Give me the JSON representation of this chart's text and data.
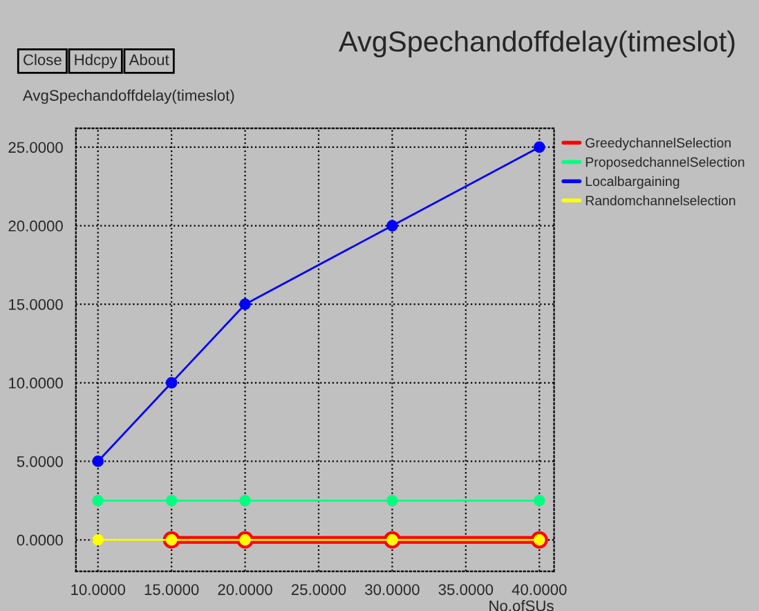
{
  "chart_data": {
    "type": "line",
    "title": "AvgSpechandoffdelay(timeslot)",
    "ylabel": "AvgSpechandoffdelay(timeslot)",
    "xlabel": "No.ofSUs",
    "annotations": [
      "Close",
      "Hdcpy",
      "About"
    ],
    "x": [
      10,
      15,
      20,
      30,
      40
    ],
    "series": [
      {
        "name": "GreedychannelSelection",
        "color": "#ff0000",
        "values": [
          null,
          0,
          0,
          0,
          0
        ]
      },
      {
        "name": "ProposedchannelSelection",
        "color": "#00ff80",
        "values": [
          2.5,
          2.5,
          2.5,
          2.5,
          2.5
        ]
      },
      {
        "name": "Localbargaining",
        "color": "#0000ff",
        "values": [
          5,
          10,
          15,
          20,
          25
        ]
      },
      {
        "name": "Randomchannelselection",
        "color": "#ffff00",
        "values": [
          0,
          0,
          0,
          0,
          0
        ]
      }
    ],
    "xlim": [
      8.5,
      41
    ],
    "ylim": [
      -2,
      26.2
    ],
    "xticks": [
      {
        "value": 10,
        "label": "10.0000"
      },
      {
        "value": 15,
        "label": "15.0000"
      },
      {
        "value": 20,
        "label": "20.0000"
      },
      {
        "value": 25,
        "label": "25.0000"
      },
      {
        "value": 30,
        "label": "30.0000"
      },
      {
        "value": 35,
        "label": "35.0000"
      },
      {
        "value": 40,
        "label": "40.0000"
      }
    ],
    "yticks": [
      {
        "value": 0,
        "label": "0.0000"
      },
      {
        "value": 5,
        "label": "5.0000"
      },
      {
        "value": 10,
        "label": "10.0000"
      },
      {
        "value": 15,
        "label": "15.0000"
      },
      {
        "value": 20,
        "label": "20.0000"
      },
      {
        "value": 25,
        "label": "25.0000"
      }
    ],
    "grid": true,
    "legend": "right",
    "marker": "circle",
    "line_style": "solid"
  }
}
